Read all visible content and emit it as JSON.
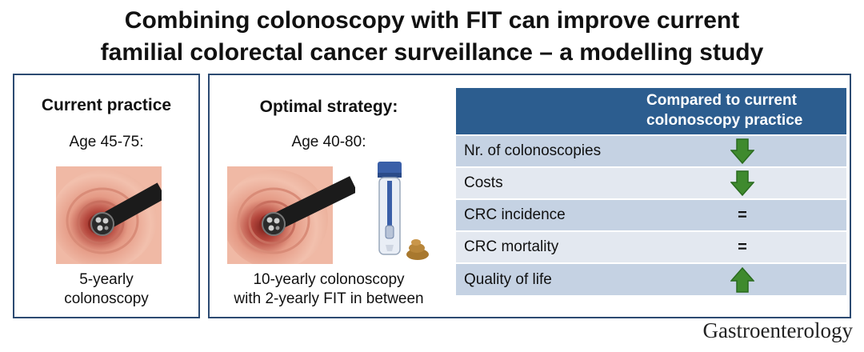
{
  "title": {
    "line1": "Combining colonoscopy with FIT can improve current",
    "line2": "familial colorectal cancer surveillance – a modelling study"
  },
  "current_practice": {
    "heading": "Current practice",
    "age": "Age 45-75:",
    "desc_line1": "5-yearly",
    "desc_line2": "colonoscopy"
  },
  "optimal_strategy": {
    "heading": "Optimal strategy:",
    "age": "Age 40-80:",
    "desc_line1": "10-yearly colonoscopy",
    "desc_line2": "with 2-yearly FIT in between"
  },
  "comparison_table": {
    "header_line1": "Compared to current",
    "header_line2": "colonoscopy practice",
    "rows": [
      {
        "label": "Nr. of colonoscopies",
        "indicator": "down-arrow"
      },
      {
        "label": "Costs",
        "indicator": "down-arrow"
      },
      {
        "label": "CRC incidence",
        "indicator": "=",
        "symbol": "="
      },
      {
        "label": "CRC mortality",
        "indicator": "=",
        "symbol": "="
      },
      {
        "label": "Quality of life",
        "indicator": "up-arrow"
      }
    ],
    "arrow_color": "#3f8a2e"
  },
  "journal": "Gastroenterology",
  "colors": {
    "border": "#2c4a72",
    "header_bg": "#2c5d8f",
    "row_dark": "#c5d2e3",
    "row_light": "#e3e8f0"
  }
}
